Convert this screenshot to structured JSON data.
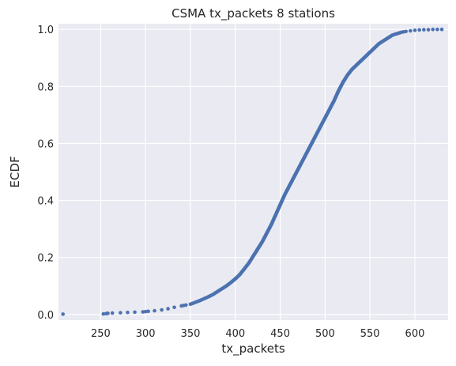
{
  "chart_data": {
    "type": "scatter",
    "title": "CSMA tx_packets 8 stations",
    "xlabel": "tx_packets",
    "ylabel": "ECDF",
    "xlim": [
      203,
      637
    ],
    "ylim": [
      -0.02,
      1.02
    ],
    "xticks": [
      250,
      300,
      350,
      400,
      450,
      500,
      550,
      600
    ],
    "yticks": [
      0.0,
      0.2,
      0.4,
      0.6,
      0.8,
      1.0
    ],
    "xtick_labels": [
      "250",
      "300",
      "350",
      "400",
      "450",
      "500",
      "550",
      "600"
    ],
    "ytick_labels": [
      "0.0",
      "0.2",
      "0.4",
      "0.6",
      "0.8",
      "1.0"
    ],
    "grid": true,
    "background_color": "#eaeaf2",
    "grid_color": "#ffffff",
    "marker_color": "#4c72b0",
    "series": [
      {
        "x": [
          208,
          253,
          256,
          258,
          263,
          272,
          280,
          288,
          297,
          300,
          303,
          310,
          318,
          325,
          332,
          340,
          345,
          350,
          355,
          360,
          365,
          370,
          375,
          380,
          385,
          390,
          395,
          400,
          405,
          410,
          415,
          420,
          425,
          430,
          435,
          440,
          445,
          450,
          455,
          460,
          465,
          470,
          475,
          480,
          485,
          490,
          495,
          500,
          505,
          510,
          515,
          520,
          525,
          530,
          535,
          540,
          545,
          550,
          555,
          560,
          565,
          570,
          575,
          580,
          585,
          590,
          595,
          600,
          605,
          610,
          615,
          620,
          625,
          630
        ],
        "y": [
          0.001,
          0.002,
          0.003,
          0.004,
          0.005,
          0.006,
          0.007,
          0.008,
          0.009,
          0.01,
          0.011,
          0.013,
          0.016,
          0.02,
          0.025,
          0.03,
          0.033,
          0.036,
          0.042,
          0.048,
          0.055,
          0.062,
          0.07,
          0.08,
          0.09,
          0.1,
          0.112,
          0.125,
          0.14,
          0.16,
          0.18,
          0.205,
          0.23,
          0.255,
          0.285,
          0.315,
          0.35,
          0.385,
          0.42,
          0.45,
          0.48,
          0.51,
          0.54,
          0.57,
          0.6,
          0.63,
          0.66,
          0.69,
          0.72,
          0.75,
          0.785,
          0.815,
          0.84,
          0.86,
          0.875,
          0.89,
          0.905,
          0.92,
          0.935,
          0.95,
          0.96,
          0.97,
          0.98,
          0.985,
          0.99,
          0.993,
          0.995,
          0.997,
          0.998,
          0.999,
          0.999,
          1.0,
          1.0,
          1.0
        ]
      }
    ]
  }
}
